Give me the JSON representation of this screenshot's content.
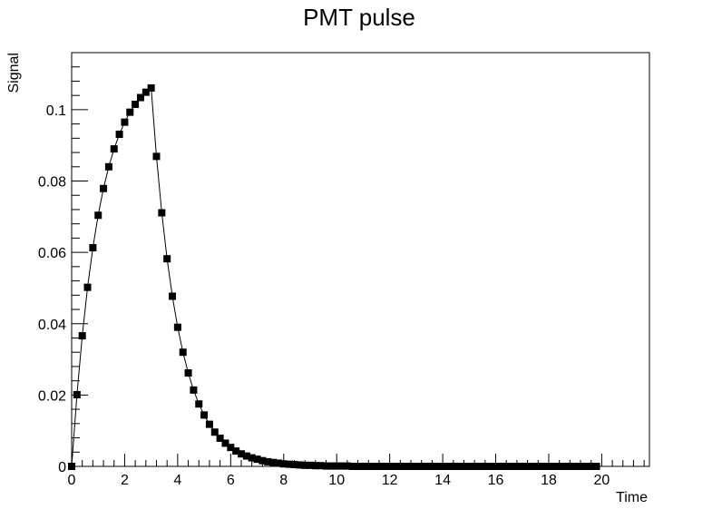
{
  "chart_data": {
    "type": "scatter",
    "title": "PMT pulse",
    "xlabel": "Time",
    "ylabel": "Signal",
    "xlim": [
      0,
      21.8
    ],
    "ylim": [
      0,
      0.116
    ],
    "x_ticks": [
      0,
      2,
      4,
      6,
      8,
      10,
      12,
      14,
      16,
      18,
      20
    ],
    "x_tick_labels": [
      "0",
      "2",
      "4",
      "6",
      "8",
      "10",
      "12",
      "14",
      "16",
      "18",
      "20"
    ],
    "y_ticks": [
      0,
      0.02,
      0.04,
      0.06,
      0.08,
      0.1
    ],
    "y_tick_labels": [
      "0",
      "0.02",
      "0.04",
      "0.06",
      "0.08",
      "0.1"
    ],
    "grid": false,
    "legend": "none",
    "marker": "square",
    "line_connects_points": true,
    "colors": {
      "marker": "#000000",
      "line": "#000000",
      "frame": "#000000",
      "background": "#ffffff"
    },
    "series": [
      {
        "x": [
          0,
          0.2,
          0.4,
          0.6,
          0.8,
          1.0,
          1.2,
          1.4,
          1.6,
          1.8,
          2.0,
          2.2,
          2.4,
          2.6,
          2.8,
          3.0,
          3.2,
          3.4,
          3.6,
          3.8,
          4.0,
          4.2,
          4.4,
          4.6,
          4.8,
          5.0,
          5.2,
          5.4,
          5.6,
          5.8,
          6.0,
          6.2,
          6.4,
          6.6,
          6.8,
          7.0,
          7.2,
          7.4,
          7.6,
          7.8,
          8.0,
          8.2,
          8.4,
          8.6,
          8.8,
          9.0,
          9.2,
          9.4,
          9.6,
          9.8,
          10.0,
          10.2,
          10.4,
          10.6,
          10.8,
          11.0,
          11.2,
          11.4,
          11.6,
          11.8,
          12.0,
          12.2,
          12.4,
          12.6,
          12.8,
          13.0,
          13.2,
          13.4,
          13.6,
          13.8,
          14.0,
          14.2,
          14.4,
          14.6,
          14.8,
          15.0,
          15.2,
          15.4,
          15.6,
          15.8,
          16.0,
          16.2,
          16.4,
          16.6,
          16.8,
          17.0,
          17.2,
          17.4,
          17.6,
          17.8,
          18.0,
          18.2,
          18.4,
          18.6,
          18.8,
          19.0,
          19.2,
          19.4,
          19.6,
          19.8
        ],
        "y": [
          0,
          0.0201,
          0.0366,
          0.0502,
          0.0613,
          0.0704,
          0.0779,
          0.084,
          0.089,
          0.0931,
          0.0965,
          0.0993,
          0.1015,
          0.1034,
          0.1049,
          0.1061,
          0.0869,
          0.0711,
          0.0582,
          0.0477,
          0.039,
          0.032,
          0.0262,
          0.0214,
          0.0175,
          0.0144,
          0.0118,
          0.0096,
          0.0079,
          0.0065,
          0.0053,
          0.0043,
          0.0035,
          0.0029,
          0.0024,
          0.002,
          0.0016,
          0.0013,
          0.0011,
          0.0009,
          0.0007,
          0.0006,
          0.0005,
          0.0004,
          0.0003,
          0.0003,
          0.0002,
          0.0002,
          0.0001,
          0.0001,
          0.0001,
          0.0001,
          0.0001,
          0,
          0,
          0,
          0,
          0,
          0,
          0,
          0,
          0,
          0,
          0,
          0,
          0,
          0,
          0,
          0,
          0,
          0,
          0,
          0,
          0,
          0,
          0,
          0,
          0,
          0,
          0,
          0,
          0,
          0,
          0,
          0,
          0,
          0,
          0,
          0,
          0,
          0,
          0,
          0,
          0,
          0,
          0,
          0,
          0,
          0,
          0
        ]
      }
    ]
  }
}
